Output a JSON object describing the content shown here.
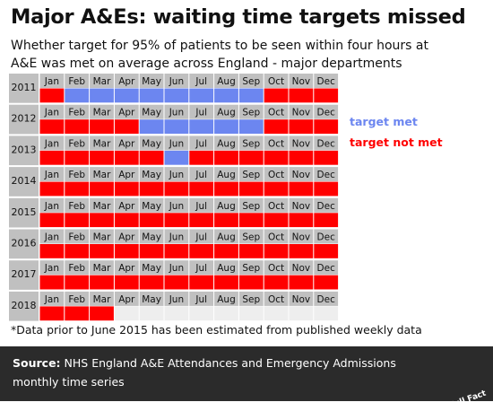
{
  "title": "Major A&Es: waiting time targets missed",
  "subtitle_lines": [
    "Whether target for 95% of patients to be seen within four hours at",
    "A&E was met on average across England - major departments"
  ],
  "footnote": "*Data prior to June 2015 has been estimated from published weekly data",
  "source_label": "Source:",
  "source_text": "NHS England A&E Attendances and Emergency Admissions monthly time series",
  "brand": "Full Fact",
  "colors": {
    "met": "#6c86f0",
    "not_met": "#ff0000",
    "header_bg": "#c0c0c0",
    "empty": "#eeeeee",
    "footer_bg": "#2b2b2b"
  },
  "chart_data": {
    "type": "heatmap",
    "x_categories": [
      "Jan",
      "Feb",
      "Mar",
      "Apr",
      "May",
      "Jun",
      "Jul",
      "Aug",
      "Sep",
      "Oct",
      "Nov",
      "Dec"
    ],
    "y_categories": [
      "2011",
      "2012",
      "2013",
      "2014",
      "2015",
      "2016",
      "2017",
      "2018"
    ],
    "legend": [
      {
        "label": "target met",
        "value": 1
      },
      {
        "label": "target not met",
        "value": 0
      }
    ],
    "values": [
      [
        0,
        1,
        1,
        1,
        1,
        1,
        1,
        1,
        1,
        0,
        0,
        0
      ],
      [
        0,
        0,
        0,
        0,
        1,
        1,
        1,
        1,
        1,
        0,
        0,
        0
      ],
      [
        0,
        0,
        0,
        0,
        0,
        1,
        0,
        0,
        0,
        0,
        0,
        0
      ],
      [
        0,
        0,
        0,
        0,
        0,
        0,
        0,
        0,
        0,
        0,
        0,
        0
      ],
      [
        0,
        0,
        0,
        0,
        0,
        0,
        0,
        0,
        0,
        0,
        0,
        0
      ],
      [
        0,
        0,
        0,
        0,
        0,
        0,
        0,
        0,
        0,
        0,
        0,
        0
      ],
      [
        0,
        0,
        0,
        0,
        0,
        0,
        0,
        0,
        0,
        0,
        0,
        0
      ],
      [
        0,
        0,
        0,
        null,
        null,
        null,
        null,
        null,
        null,
        null,
        null,
        null
      ]
    ]
  }
}
